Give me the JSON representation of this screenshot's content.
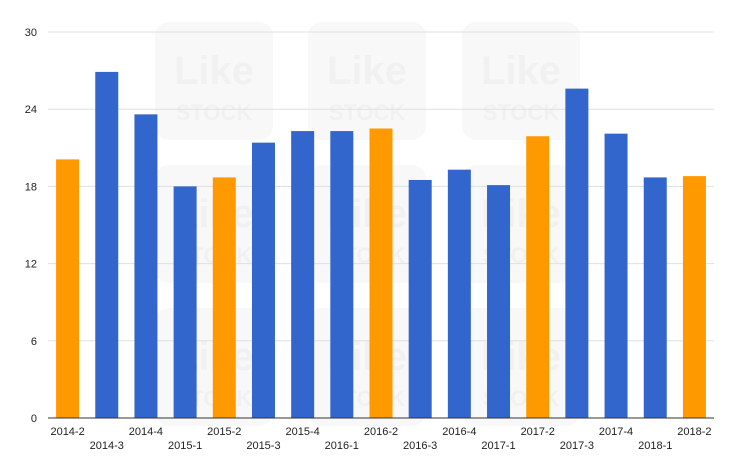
{
  "chart_data": {
    "type": "bar",
    "categories": [
      "2014-2",
      "2014-3",
      "2014-4",
      "2015-1",
      "2015-2",
      "2015-3",
      "2015-4",
      "2016-1",
      "2016-2",
      "2016-3",
      "2016-4",
      "2017-1",
      "2017-2",
      "2017-3",
      "2017-4",
      "2018-1",
      "2018-2"
    ],
    "values": [
      20.1,
      26.9,
      23.6,
      18.0,
      18.7,
      21.4,
      22.3,
      22.3,
      22.5,
      18.5,
      19.3,
      18.1,
      21.9,
      25.6,
      22.1,
      18.7,
      18.8
    ],
    "highlight": [
      true,
      false,
      false,
      false,
      true,
      false,
      false,
      false,
      true,
      false,
      false,
      false,
      true,
      false,
      false,
      false,
      true
    ],
    "colors": {
      "primary": "#3366cc",
      "highlight": "#ff9900",
      "grid": "#e0e0e0",
      "axis": "#333333"
    },
    "y_ticks": [
      0,
      6,
      12,
      18,
      24,
      30
    ],
    "ylim": [
      0,
      30
    ],
    "grid": true,
    "legend": "none",
    "title": "",
    "xlabel": "",
    "ylabel": ""
  },
  "watermark": {
    "line1": "Like",
    "line2": "STOCK"
  }
}
